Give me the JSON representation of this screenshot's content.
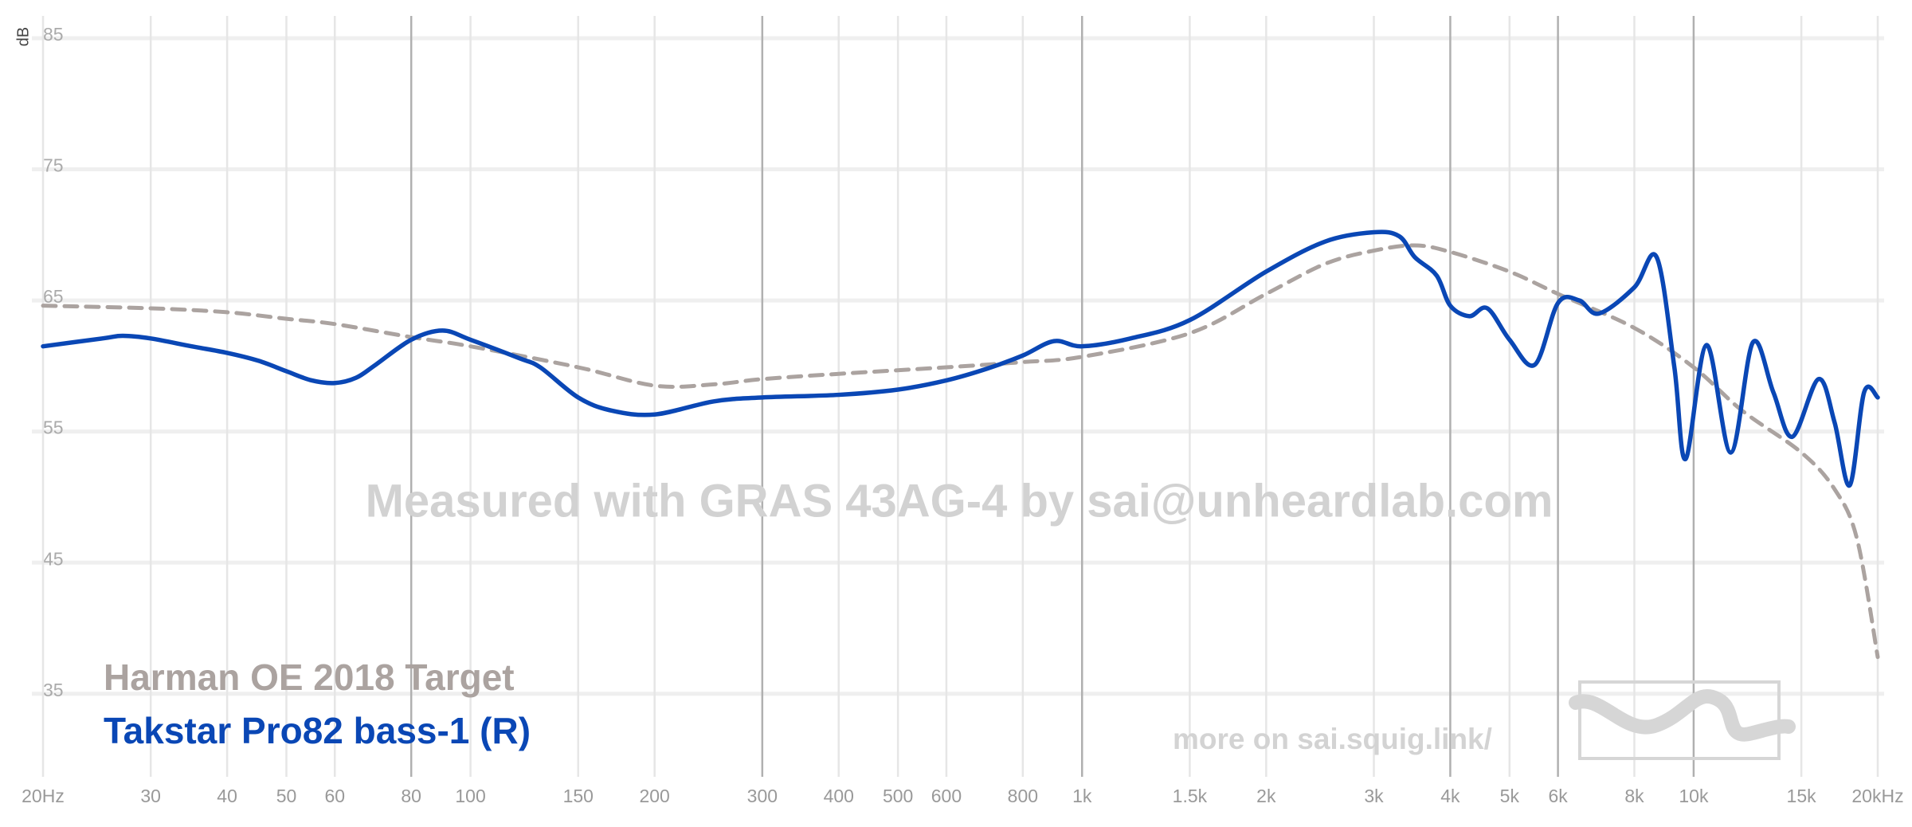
{
  "chart_data": {
    "type": "line",
    "y_label": "dB",
    "watermark": "Measured with GRAS 43AG-4 by sai@unheardlab.com",
    "footer": "more on sai.squig.link/",
    "xscale": "log",
    "xlim": [
      20,
      20000
    ],
    "ylim": [
      30,
      85
    ],
    "yticks": [
      35,
      45,
      55,
      65,
      75,
      85
    ],
    "xticks": [
      {
        "value": 20,
        "label": "20Hz"
      },
      30,
      40,
      50,
      60,
      80,
      100,
      150,
      200,
      300,
      400,
      500,
      600,
      800,
      {
        "value": 1000,
        "label": "1k"
      },
      {
        "value": 1500,
        "label": "1.5k"
      },
      {
        "value": 2000,
        "label": "2k"
      },
      {
        "value": 3000,
        "label": "3k"
      },
      {
        "value": 4000,
        "label": "4k"
      },
      {
        "value": 5000,
        "label": "5k"
      },
      {
        "value": 6000,
        "label": "6k"
      },
      {
        "value": 8000,
        "label": "8k"
      },
      {
        "value": 10000,
        "label": "10k"
      },
      {
        "value": 15000,
        "label": "15k"
      },
      {
        "value": 20000,
        "label": "20kHz"
      }
    ],
    "x_emphasis": [
      80,
      300,
      1000,
      4000,
      6000,
      10000
    ],
    "grid": true,
    "legend": "bottom-left",
    "series": [
      {
        "name": "Harman OE 2018 Target",
        "color": "#aba3a0",
        "dashed": true,
        "x": [
          20,
          30,
          40,
          50,
          60,
          80,
          100,
          150,
          200,
          250,
          300,
          400,
          600,
          800,
          1000,
          1500,
          2000,
          2500,
          3000,
          3500,
          4000,
          5000,
          6000,
          8000,
          10000,
          12000,
          15000,
          17000,
          18500,
          20000
        ],
        "values": [
          64.6,
          64.4,
          64.1,
          63.6,
          63.2,
          62.2,
          61.5,
          59.9,
          58.5,
          58.6,
          59.0,
          59.4,
          59.9,
          60.3,
          60.7,
          62.5,
          65.5,
          67.8,
          68.8,
          69.2,
          68.7,
          67.2,
          65.5,
          62.9,
          59.9,
          56.6,
          53.4,
          50.6,
          46.8,
          37.8
        ]
      },
      {
        "name": "Takstar Pro82 bass-1 (R)",
        "color": "#0a47b5",
        "dashed": false,
        "x": [
          20,
          25,
          27,
          30,
          35,
          40,
          45,
          50,
          55,
          60,
          65,
          70,
          80,
          90,
          100,
          120,
          130,
          150,
          170,
          200,
          250,
          300,
          400,
          500,
          600,
          700,
          800,
          900,
          1000,
          1200,
          1500,
          2000,
          2500,
          3000,
          3300,
          3500,
          3800,
          4000,
          4300,
          4600,
          5000,
          5500,
          6000,
          6500,
          7000,
          8000,
          8700,
          9300,
          9700,
          10500,
          11500,
          12500,
          13500,
          14500,
          16000,
          17000,
          18000,
          19000,
          20000
        ],
        "values": [
          61.5,
          62.1,
          62.3,
          62.1,
          61.5,
          61.0,
          60.4,
          59.6,
          58.9,
          58.7,
          59.1,
          60.1,
          62.0,
          62.7,
          62.0,
          60.6,
          59.9,
          57.6,
          56.6,
          56.3,
          57.3,
          57.6,
          57.8,
          58.2,
          58.9,
          59.8,
          60.8,
          61.9,
          61.5,
          62.1,
          63.5,
          67.2,
          69.5,
          70.2,
          69.9,
          68.3,
          66.9,
          64.6,
          63.8,
          64.4,
          62.0,
          60.1,
          64.8,
          65.0,
          64.0,
          66.0,
          68.3,
          59.9,
          52.9,
          61.6,
          53.4,
          61.8,
          58.0,
          54.6,
          59.0,
          55.7,
          50.9,
          58.0,
          57.6
        ]
      }
    ]
  }
}
